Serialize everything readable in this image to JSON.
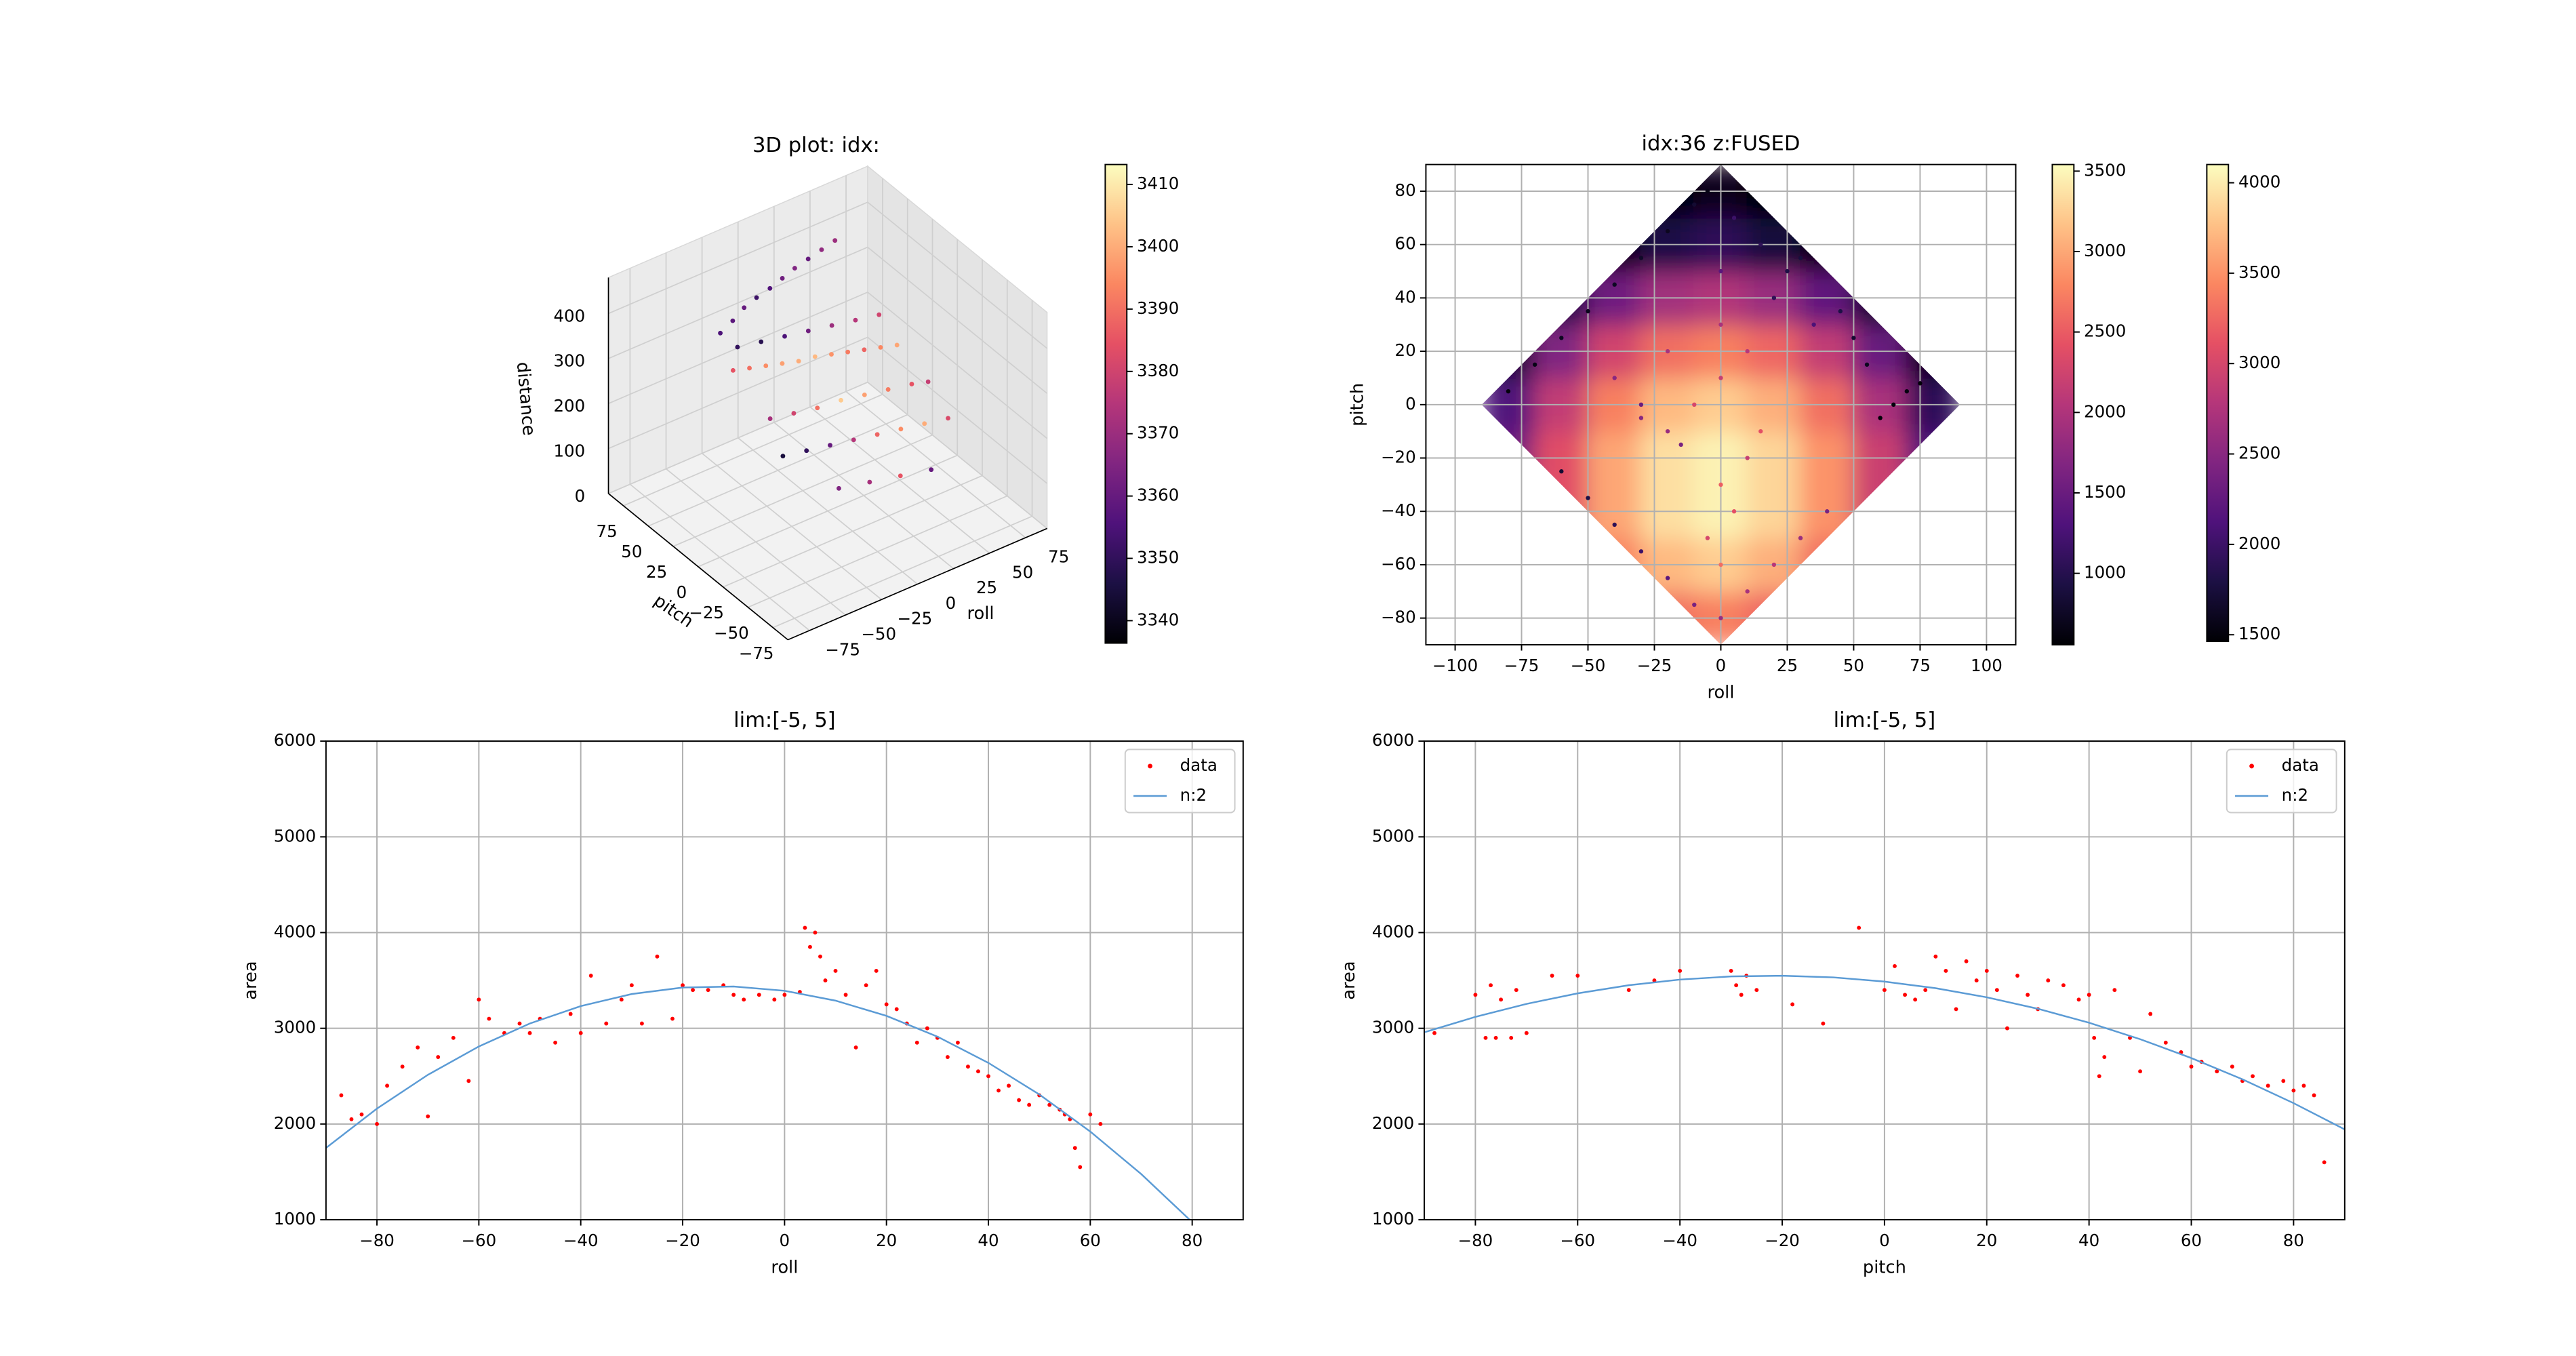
{
  "chart_data": [
    {
      "type": "scatter3d",
      "title": "3D plot: idx:",
      "xlabel": "roll",
      "ylabel": "pitch",
      "zlabel": "distance",
      "xlim": [
        -90,
        90
      ],
      "ylim": [
        -90,
        90
      ],
      "zlim": [
        0,
        480
      ],
      "xticks": [
        {
          "value": -75,
          "label": "−75"
        },
        {
          "value": -50,
          "label": "−50"
        },
        {
          "value": -25,
          "label": "−25"
        },
        0,
        25,
        50,
        75
      ],
      "yticks": [
        {
          "value": -75,
          "label": "−75"
        },
        {
          "value": -50,
          "label": "−50"
        },
        {
          "value": -25,
          "label": "−25"
        },
        0,
        25,
        50,
        75
      ],
      "zticks": [
        0,
        100,
        200,
        300,
        400
      ],
      "x": [
        -40,
        -30,
        -20,
        -10,
        0,
        10,
        20,
        30,
        40,
        50,
        -45,
        -35,
        -25,
        -15,
        -5,
        5,
        15,
        25,
        35,
        45,
        55,
        -40,
        -25,
        -10,
        5,
        20,
        35,
        50,
        60,
        -45,
        -30,
        -15,
        0,
        15,
        30,
        45,
        60,
        -35,
        -20,
        -5,
        10,
        25,
        40,
        55,
        -20,
        0,
        20,
        40
      ],
      "y": [
        50,
        52,
        55,
        57,
        58,
        60,
        62,
        63,
        64,
        65,
        30,
        28,
        26,
        24,
        22,
        20,
        18,
        16,
        14,
        12,
        10,
        0,
        -2,
        -4,
        -6,
        -8,
        -10,
        -12,
        -14,
        -20,
        -22,
        -24,
        -26,
        -28,
        -30,
        -32,
        -34,
        40,
        38,
        36,
        34,
        32,
        30,
        28,
        -40,
        -42,
        -44,
        -46
      ],
      "z": [
        360,
        370,
        380,
        385,
        390,
        395,
        400,
        405,
        410,
        415,
        320,
        315,
        310,
        305,
        300,
        300,
        295,
        290,
        285,
        280,
        275,
        260,
        255,
        250,
        250,
        245,
        240,
        235,
        230,
        220,
        215,
        210,
        205,
        200,
        195,
        190,
        185,
        340,
        335,
        330,
        325,
        320,
        315,
        310,
        150,
        140,
        130,
        120
      ],
      "c": [
        3355,
        3358,
        3360,
        3352,
        3356,
        3362,
        3365,
        3360,
        3368,
        3370,
        3385,
        3390,
        3395,
        3398,
        3400,
        3402,
        3396,
        3392,
        3388,
        3394,
        3399,
        3372,
        3380,
        3390,
        3405,
        3398,
        3392,
        3385,
        3378,
        3345,
        3350,
        3360,
        3375,
        3388,
        3395,
        3400,
        3382,
        3350,
        3348,
        3355,
        3362,
        3370,
        3375,
        3380,
        3365,
        3372,
        3385,
        3360
      ],
      "colormap": "magma",
      "clim": [
        3336.4,
        3413.2
      ],
      "cticks": [
        3340,
        3350,
        3360,
        3370,
        3380,
        3390,
        3400,
        3410
      ]
    },
    {
      "type": "heatmap",
      "title": "idx:36 z:FUSED",
      "xlabel": "roll",
      "ylabel": "pitch",
      "grid": true,
      "colormap": "magma",
      "xlim": [
        -111,
        111
      ],
      "ylim": [
        -90,
        90
      ],
      "xticks": [
        {
          "value": -100,
          "label": "−100"
        },
        {
          "value": -75,
          "label": "−75"
        },
        {
          "value": -50,
          "label": "−50"
        },
        {
          "value": -25,
          "label": "−25"
        },
        0,
        25,
        50,
        75,
        100
      ],
      "yticks": [
        {
          "value": -80,
          "label": "−80"
        },
        {
          "value": -60,
          "label": "−60"
        },
        {
          "value": -40,
          "label": "−40"
        },
        {
          "value": -20,
          "label": "−20"
        },
        0,
        20,
        40,
        60,
        80
      ],
      "heatmap": {
        "x": [
          -80,
          -60,
          -40,
          -20,
          0,
          20,
          40,
          60,
          80
        ],
        "y": [
          -80,
          -60,
          -40,
          -20,
          0,
          20,
          40,
          60,
          80
        ],
        "z": [
          [
            null,
            null,
            null,
            2630,
            2750,
            2570,
            null,
            null,
            null
          ],
          [
            null,
            null,
            2750,
            3110,
            3230,
            3050,
            2630,
            null,
            null
          ],
          [
            null,
            2390,
            2990,
            3350,
            3470,
            3290,
            2870,
            2210,
            null
          ],
          [
            1550,
            2390,
            2990,
            3350,
            3470,
            3290,
            2870,
            2210,
            1310
          ],
          [
            1310,
            2150,
            2750,
            3110,
            3230,
            3050,
            2630,
            1970,
            1070
          ],
          [
            830,
            1670,
            2270,
            2630,
            2750,
            2570,
            2150,
            1490,
            590
          ],
          [
            null,
            950,
            1550,
            1910,
            2030,
            1850,
            1430,
            770,
            null
          ],
          [
            null,
            null,
            590,
            950,
            1070,
            890,
            470,
            null,
            null
          ],
          [
            null,
            null,
            null,
            600,
            700,
            550,
            null,
            null,
            null
          ]
        ],
        "clim": [
          556,
          3541
        ],
        "cticks": [
          1000,
          1500,
          2000,
          2500,
          3000,
          3500
        ]
      },
      "scatter": {
        "x": [
          -80,
          -70,
          -60,
          -50,
          -40,
          -30,
          -20,
          -10,
          -5,
          60,
          65,
          70,
          75,
          55,
          50,
          45,
          -60,
          -50,
          -40,
          -30,
          -20,
          -10,
          0,
          10,
          20,
          30,
          40,
          -10,
          0,
          10,
          0,
          0,
          0,
          5,
          -5,
          20,
          25,
          30,
          -40,
          -30,
          -20,
          -15,
          10,
          15,
          5,
          35,
          -20,
          -30,
          0,
          15
        ],
        "y": [
          5,
          15,
          25,
          35,
          45,
          55,
          65,
          75,
          80,
          -5,
          0,
          5,
          8,
          15,
          25,
          35,
          -25,
          -35,
          -45,
          -55,
          -65,
          -75,
          -80,
          -70,
          -60,
          -50,
          -40,
          0,
          10,
          20,
          30,
          50,
          -30,
          -40,
          -50,
          40,
          50,
          55,
          10,
          0,
          -10,
          -15,
          -20,
          -10,
          70,
          30,
          20,
          -5,
          -60,
          60
        ],
        "c": [
          1500,
          1550,
          1600,
          1580,
          1620,
          1650,
          1600,
          1700,
          1550,
          1480,
          1500,
          1520,
          1490,
          1600,
          1700,
          1800,
          1700,
          1800,
          1900,
          2000,
          2200,
          2400,
          2600,
          2700,
          2800,
          2600,
          2400,
          3000,
          2900,
          2800,
          2700,
          2200,
          3200,
          3100,
          3000,
          1900,
          1800,
          1750,
          2500,
          2300,
          2600,
          2400,
          2900,
          3100,
          2000,
          2100,
          2700,
          2500,
          3300,
          1900
        ],
        "clim": [
          1463,
          4101
        ],
        "cticks": [
          1500,
          2000,
          2500,
          3000,
          3500,
          4000
        ]
      }
    },
    {
      "type": "scatter_fit",
      "title": "lim:[-5, 5]",
      "xlabel": "roll",
      "ylabel": "area",
      "grid": true,
      "legend": "upper right",
      "xlim": [
        -90,
        90
      ],
      "ylim": [
        1000,
        6000
      ],
      "xticks": [
        {
          "value": -80,
          "label": "−80"
        },
        {
          "value": -60,
          "label": "−60"
        },
        {
          "value": -40,
          "label": "−40"
        },
        {
          "value": -20,
          "label": "−20"
        },
        0,
        20,
        40,
        60,
        80
      ],
      "yticks": [
        1000,
        2000,
        3000,
        4000,
        5000,
        6000
      ],
      "series": [
        {
          "name": "data",
          "style": "scatter",
          "color": "#ff0000",
          "x": [
            -87,
            -85,
            -83,
            -80,
            -78,
            -75,
            -72,
            -70,
            -68,
            -65,
            -62,
            -60,
            -58,
            -55,
            -52,
            -50,
            -48,
            -45,
            -42,
            -40,
            -38,
            -35,
            -32,
            -30,
            -28,
            -25,
            -22,
            -20,
            -18,
            -15,
            -12,
            -10,
            -8,
            -5,
            -2,
            0,
            3,
            4,
            5,
            6,
            7,
            8,
            10,
            12,
            14,
            16,
            18,
            20,
            22,
            24,
            26,
            28,
            30,
            32,
            34,
            36,
            38,
            40,
            42,
            44,
            46,
            48,
            50,
            52,
            54,
            55,
            56,
            57,
            58,
            60,
            62
          ],
          "values": [
            2300,
            2050,
            2100,
            2000,
            2400,
            2600,
            2800,
            2080,
            2700,
            2900,
            2450,
            3300,
            3100,
            2950,
            3050,
            2950,
            3100,
            2850,
            3150,
            2950,
            3550,
            3050,
            3300,
            3450,
            3050,
            3750,
            3100,
            3450,
            3400,
            3400,
            3450,
            3350,
            3300,
            3350,
            3300,
            3350,
            3380,
            4050,
            3850,
            4000,
            3750,
            3500,
            3600,
            3350,
            2800,
            3450,
            3600,
            3250,
            3200,
            3050,
            2850,
            3000,
            2900,
            2700,
            2850,
            2600,
            2550,
            2500,
            2350,
            2400,
            2250,
            2200,
            2300,
            2200,
            2150,
            2100,
            2050,
            1750,
            1550,
            2100,
            2000
          ]
        },
        {
          "name": "n:2",
          "style": "line",
          "color": "#5b9bd5",
          "x": [
            -90,
            -80,
            -70,
            -60,
            -50,
            -40,
            -30,
            -20,
            -10,
            0,
            10,
            20,
            30,
            40,
            50,
            60,
            70,
            80
          ],
          "values": [
            1750,
            2161,
            2514,
            2810,
            3050,
            3232,
            3358,
            3426,
            3437,
            3392,
            3289,
            3130,
            2913,
            2639,
            2309,
            1921,
            1477,
            975
          ]
        }
      ]
    },
    {
      "type": "scatter_fit",
      "title": "lim:[-5, 5]",
      "xlabel": "pitch",
      "ylabel": "area",
      "grid": true,
      "legend": "upper right",
      "xlim": [
        -90,
        90
      ],
      "ylim": [
        1000,
        6000
      ],
      "xticks": [
        {
          "value": -80,
          "label": "−80"
        },
        {
          "value": -60,
          "label": "−60"
        },
        {
          "value": -40,
          "label": "−40"
        },
        {
          "value": -20,
          "label": "−20"
        },
        0,
        20,
        40,
        60,
        80
      ],
      "yticks": [
        1000,
        2000,
        3000,
        4000,
        5000,
        6000
      ],
      "series": [
        {
          "name": "data",
          "style": "scatter",
          "color": "#ff0000",
          "x": [
            -88,
            -80,
            -78,
            -77,
            -76,
            -75,
            -73,
            -72,
            -70,
            -65,
            -60,
            -50,
            -45,
            -40,
            -30,
            -29,
            -28,
            -27,
            -25,
            -18,
            -12,
            -5,
            0,
            2,
            4,
            6,
            8,
            10,
            12,
            14,
            16,
            18,
            20,
            22,
            24,
            26,
            28,
            30,
            32,
            35,
            38,
            40,
            41,
            42,
            43,
            45,
            48,
            50,
            52,
            55,
            58,
            60,
            62,
            65,
            68,
            70,
            72,
            75,
            78,
            80,
            82,
            84,
            86
          ],
          "values": [
            2950,
            3350,
            2900,
            3450,
            2900,
            3300,
            2900,
            3400,
            2950,
            3550,
            3550,
            3400,
            3500,
            3600,
            3600,
            3450,
            3350,
            3550,
            3400,
            3250,
            3050,
            4050,
            3400,
            3650,
            3350,
            3300,
            3400,
            3750,
            3600,
            3200,
            3700,
            3500,
            3600,
            3400,
            3000,
            3550,
            3350,
            3200,
            3500,
            3450,
            3300,
            3350,
            2900,
            2500,
            2700,
            3400,
            2900,
            2550,
            3150,
            2850,
            2750,
            2600,
            2650,
            2550,
            2600,
            2450,
            2500,
            2400,
            2450,
            2350,
            2400,
            2300,
            1600
          ]
        },
        {
          "name": "n:2",
          "style": "line",
          "color": "#5b9bd5",
          "x": [
            -90,
            -80,
            -70,
            -60,
            -50,
            -40,
            -30,
            -20,
            -10,
            0,
            10,
            20,
            30,
            40,
            50,
            60,
            70,
            80,
            90
          ],
          "values": [
            2958,
            3119,
            3255,
            3365,
            3450,
            3509,
            3542,
            3549,
            3532,
            3488,
            3419,
            3324,
            3204,
            3058,
            2886,
            2689,
            2467,
            2218,
            1944
          ]
        }
      ]
    }
  ]
}
